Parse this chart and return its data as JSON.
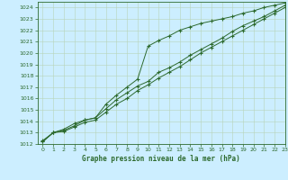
{
  "title": "Graphe pression niveau de la mer (hPa)",
  "bg_color": "#cceeff",
  "line_color": "#2d6a2d",
  "grid_color": "#b8d4b8",
  "xlim": [
    -0.5,
    23
  ],
  "ylim": [
    1012,
    1024.5
  ],
  "xticks": [
    0,
    1,
    2,
    3,
    4,
    5,
    6,
    7,
    8,
    9,
    10,
    11,
    12,
    13,
    14,
    15,
    16,
    17,
    18,
    19,
    20,
    21,
    22,
    23
  ],
  "yticks": [
    1012,
    1013,
    1014,
    1015,
    1016,
    1017,
    1018,
    1019,
    1020,
    1021,
    1022,
    1023,
    1024
  ],
  "series1": [
    1012.3,
    1013.0,
    1013.1,
    1013.5,
    1013.9,
    1014.1,
    1014.8,
    1015.5,
    1016.0,
    1016.7,
    1017.2,
    1017.8,
    1018.3,
    1018.8,
    1019.4,
    1020.0,
    1020.5,
    1021.0,
    1021.5,
    1022.0,
    1022.5,
    1023.0,
    1023.5,
    1024.0
  ],
  "series2": [
    1012.2,
    1013.0,
    1013.2,
    1013.6,
    1014.1,
    1014.3,
    1015.1,
    1015.9,
    1016.5,
    1017.1,
    1017.5,
    1018.3,
    1018.7,
    1019.2,
    1019.8,
    1020.3,
    1020.8,
    1021.3,
    1021.9,
    1022.4,
    1022.8,
    1023.2,
    1023.7,
    1024.2
  ],
  "series3": [
    1012.2,
    1013.0,
    1013.3,
    1013.8,
    1014.1,
    1014.3,
    1015.5,
    1016.3,
    1017.0,
    1017.7,
    1020.6,
    1021.1,
    1021.5,
    1022.0,
    1022.3,
    1022.6,
    1022.8,
    1023.0,
    1023.2,
    1023.5,
    1023.7,
    1024.0,
    1024.2,
    1024.4
  ]
}
